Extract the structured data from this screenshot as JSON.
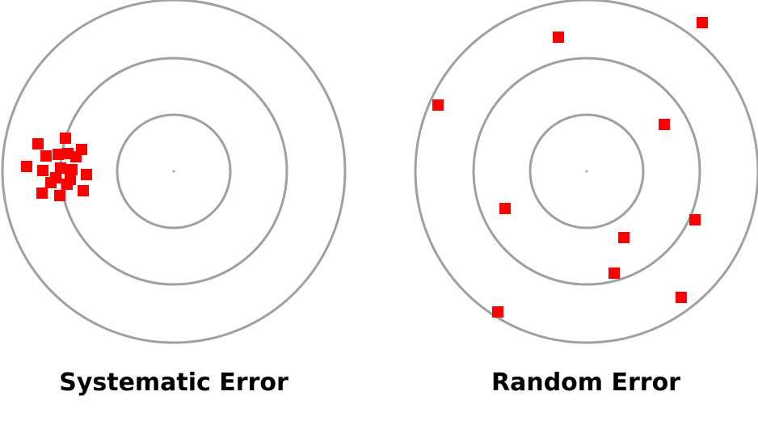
{
  "colors": {
    "ring": "#a0a0a0",
    "shot": "#ff0000",
    "caption": "#000000",
    "background": "#ffffff"
  },
  "targets": [
    {
      "name": "systematic",
      "caption": "Systematic Error",
      "shots": [
        [
          -168,
          -34
        ],
        [
          -134,
          -41
        ],
        [
          -158,
          -19
        ],
        [
          -143,
          -21
        ],
        [
          -131,
          -22
        ],
        [
          -114,
          -27
        ],
        [
          -121,
          -18
        ],
        [
          -182,
          -6
        ],
        [
          -162,
          -1
        ],
        [
          -140,
          -4
        ],
        [
          -126,
          -2
        ],
        [
          -108,
          4
        ],
        [
          -152,
          14
        ],
        [
          -132,
          16
        ],
        [
          -112,
          24
        ],
        [
          -163,
          27
        ],
        [
          -141,
          30
        ],
        [
          -146,
          8
        ],
        [
          -128,
          10
        ]
      ]
    },
    {
      "name": "random",
      "caption": "Random Error",
      "shots": [
        [
          -35,
          -166
        ],
        [
          143,
          -184
        ],
        [
          -184,
          -82
        ],
        [
          96,
          -58
        ],
        [
          -101,
          46
        ],
        [
          134,
          60
        ],
        [
          46,
          82
        ],
        [
          34,
          126
        ],
        [
          117,
          156
        ],
        [
          -110,
          174
        ]
      ]
    }
  ]
}
